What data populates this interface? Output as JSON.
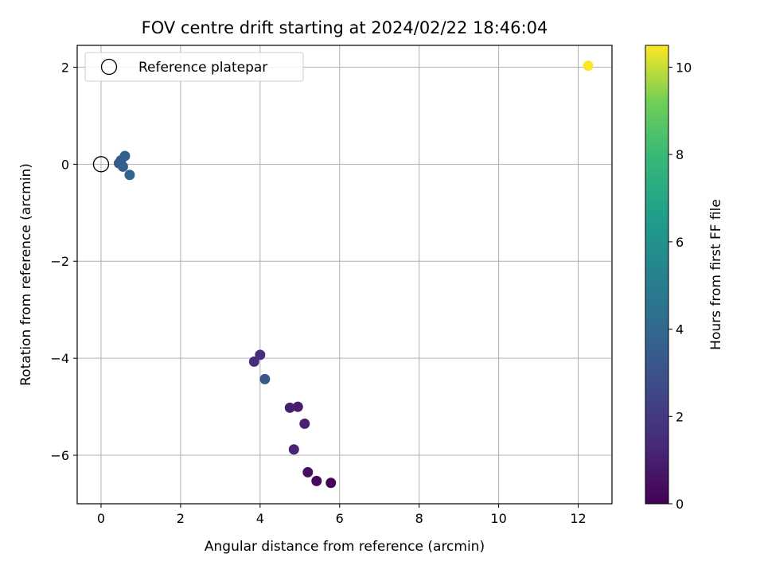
{
  "chart_data": {
    "type": "scatter",
    "title": "FOV centre drift starting at 2024/02/22 18:46:04",
    "xlabel": "Angular distance from reference (arcmin)",
    "ylabel": "Rotation from reference (arcmin)",
    "xlim": [
      -0.6,
      12.85
    ],
    "ylim": [
      -7.0,
      2.45
    ],
    "xticks": [
      0,
      2,
      4,
      6,
      8,
      10,
      12
    ],
    "yticks": [
      -6,
      -4,
      -2,
      0,
      2
    ],
    "grid": true,
    "legend": {
      "placement": "top-left",
      "entries": [
        {
          "label": "Reference platepar",
          "marker": "open-circle",
          "x": 0,
          "y": 0
        }
      ]
    },
    "colorbar": {
      "label": "Hours from first FF file",
      "colormap": "viridis",
      "range": [
        0,
        10.5
      ],
      "ticks": [
        0,
        2,
        4,
        6,
        8,
        10
      ]
    },
    "points": [
      {
        "x": 0.45,
        "y": 0.02,
        "hours": 3.3
      },
      {
        "x": 0.5,
        "y": 0.08,
        "hours": 3.4
      },
      {
        "x": 0.55,
        "y": -0.05,
        "hours": 3.5
      },
      {
        "x": 0.6,
        "y": 0.17,
        "hours": 3.6
      },
      {
        "x": 0.72,
        "y": -0.22,
        "hours": 3.7
      },
      {
        "x": 3.85,
        "y": -4.07,
        "hours": 1.5
      },
      {
        "x": 4.0,
        "y": -3.93,
        "hours": 1.6
      },
      {
        "x": 4.12,
        "y": -4.43,
        "hours": 3.2
      },
      {
        "x": 4.75,
        "y": -5.02,
        "hours": 1.0
      },
      {
        "x": 4.95,
        "y": -5.0,
        "hours": 0.9
      },
      {
        "x": 5.12,
        "y": -5.35,
        "hours": 1.1
      },
      {
        "x": 4.85,
        "y": -5.88,
        "hours": 1.2
      },
      {
        "x": 5.2,
        "y": -6.35,
        "hours": 0.5
      },
      {
        "x": 5.42,
        "y": -6.53,
        "hours": 0.3
      },
      {
        "x": 5.78,
        "y": -6.57,
        "hours": 0.1
      },
      {
        "x": 12.25,
        "y": 2.03,
        "hours": 10.5
      }
    ]
  }
}
